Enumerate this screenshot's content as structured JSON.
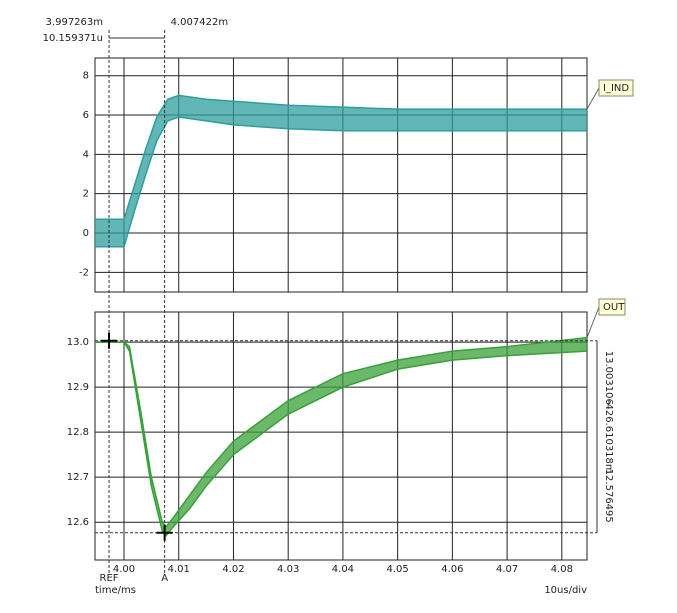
{
  "chart_data": [
    {
      "type": "band",
      "x_label": null,
      "x": [
        3.9947,
        3.998,
        4.0,
        4.002,
        4.004,
        4.006,
        4.008,
        4.01,
        4.015,
        4.02,
        4.03,
        4.04,
        4.05,
        4.06,
        4.07,
        4.0846
      ],
      "series": [
        {
          "name": "I_IND",
          "color": "#2e9e9e",
          "upper": [
            0.7,
            0.7,
            0.7,
            2.5,
            4.3,
            5.9,
            6.8,
            7.0,
            6.8,
            6.7,
            6.5,
            6.4,
            6.3,
            6.3,
            6.3,
            6.3
          ],
          "lower": [
            -0.7,
            -0.7,
            -0.7,
            1.2,
            3.0,
            4.7,
            5.7,
            5.9,
            5.7,
            5.5,
            5.3,
            5.2,
            5.2,
            5.2,
            5.2,
            5.2
          ]
        }
      ],
      "xlim": [
        3.9947,
        4.0846
      ],
      "xticks": [
        4.0,
        4.01,
        4.02,
        4.03,
        4.04,
        4.05,
        4.06,
        4.07,
        4.08
      ],
      "ylim": [
        -3.0,
        8.9
      ],
      "yticks": [
        -2,
        0,
        2,
        4,
        6,
        8
      ],
      "grid": true,
      "cursors": [
        {
          "name": "REF",
          "x": {
            "value": 3.997263,
            "label": "3.997263m"
          }
        },
        {
          "name": "A",
          "x": {
            "value": 4.007422,
            "label": "4.007422m"
          }
        }
      ],
      "cursor_delta": "10.159371u"
    },
    {
      "type": "band",
      "x": [
        3.9947,
        4.0,
        4.001,
        4.003,
        4.005,
        4.007,
        4.0077,
        4.009,
        4.012,
        4.015,
        4.02,
        4.03,
        4.04,
        4.05,
        4.06,
        4.07,
        4.0846
      ],
      "series": [
        {
          "name": "OUT",
          "color": "#3aa03a",
          "upper": [
            13.0,
            13.0,
            12.99,
            12.85,
            12.7,
            12.6,
            12.59,
            12.61,
            12.66,
            12.71,
            12.78,
            12.87,
            12.93,
            12.96,
            12.98,
            12.99,
            13.01
          ],
          "lower": [
            13.0,
            13.0,
            12.98,
            12.83,
            12.68,
            12.58,
            12.57,
            12.59,
            12.63,
            12.68,
            12.75,
            12.84,
            12.9,
            12.94,
            12.96,
            12.97,
            12.98
          ]
        }
      ],
      "xlim": [
        3.9947,
        4.0846
      ],
      "xticks": [
        {
          "value": 4.0,
          "label": "4.00"
        },
        {
          "value": 4.01,
          "label": "4.01"
        },
        {
          "value": 4.02,
          "label": "4.02"
        },
        {
          "value": 4.03,
          "label": "4.03"
        },
        {
          "value": 4.04,
          "label": "4.04"
        },
        {
          "value": 4.05,
          "label": "4.05"
        },
        {
          "value": 4.06,
          "label": "4.06"
        },
        {
          "value": 4.07,
          "label": "4.07"
        },
        {
          "value": 4.08,
          "label": "4.08"
        }
      ],
      "ylim": [
        12.516,
        13.067
      ],
      "yticks": [
        {
          "value": 13.0,
          "label": "13.0"
        },
        {
          "value": 12.9,
          "label": "12.9"
        },
        {
          "value": 12.8,
          "label": "12.8"
        },
        {
          "value": 12.7,
          "label": "12.7"
        },
        {
          "value": 12.6,
          "label": "12.6"
        }
      ],
      "grid": true,
      "ycursors": [
        13.003106,
        12.576495
      ],
      "ycursor_delta": "-426.610318m",
      "x_label": "time/ms",
      "scale_label": "10us/div"
    }
  ]
}
